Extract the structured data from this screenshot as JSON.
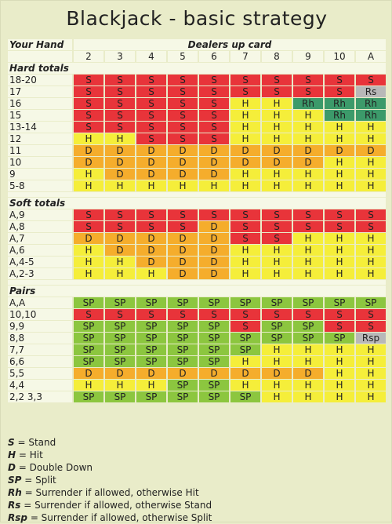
{
  "title": "Blackjack - basic strategy",
  "header": {
    "your_hand": "Your Hand",
    "dealer_label": "Dealers up card",
    "dealer_cards": [
      "2",
      "3",
      "4",
      "5",
      "6",
      "7",
      "8",
      "9",
      "10",
      "A"
    ]
  },
  "sections": [
    {
      "title": "Hard totals",
      "rows": [
        {
          "hand": "18-20",
          "cells": [
            "S",
            "S",
            "S",
            "S",
            "S",
            "S",
            "S",
            "S",
            "S",
            "S"
          ]
        },
        {
          "hand": "17",
          "cells": [
            "S",
            "S",
            "S",
            "S",
            "S",
            "S",
            "S",
            "S",
            "S",
            "Rs"
          ]
        },
        {
          "hand": "16",
          "cells": [
            "S",
            "S",
            "S",
            "S",
            "S",
            "H",
            "H",
            "Rh",
            "Rh",
            "Rh"
          ]
        },
        {
          "hand": "15",
          "cells": [
            "S",
            "S",
            "S",
            "S",
            "S",
            "H",
            "H",
            "H",
            "Rh",
            "Rh"
          ]
        },
        {
          "hand": "13-14",
          "cells": [
            "S",
            "S",
            "S",
            "S",
            "S",
            "H",
            "H",
            "H",
            "H",
            "H"
          ]
        },
        {
          "hand": "12",
          "cells": [
            "H",
            "H",
            "S",
            "S",
            "S",
            "H",
            "H",
            "H",
            "H",
            "H"
          ]
        },
        {
          "hand": "11",
          "cells": [
            "D",
            "D",
            "D",
            "D",
            "D",
            "D",
            "D",
            "D",
            "D",
            "D"
          ]
        },
        {
          "hand": "10",
          "cells": [
            "D",
            "D",
            "D",
            "D",
            "D",
            "D",
            "D",
            "D",
            "H",
            "H"
          ]
        },
        {
          "hand": "9",
          "cells": [
            "H",
            "D",
            "D",
            "D",
            "D",
            "H",
            "H",
            "H",
            "H",
            "H"
          ]
        },
        {
          "hand": "5-8",
          "cells": [
            "H",
            "H",
            "H",
            "H",
            "H",
            "H",
            "H",
            "H",
            "H",
            "H"
          ]
        }
      ]
    },
    {
      "title": "Soft totals",
      "rows": [
        {
          "hand": "A,9",
          "cells": [
            "S",
            "S",
            "S",
            "S",
            "S",
            "S",
            "S",
            "S",
            "S",
            "S"
          ]
        },
        {
          "hand": "A,8",
          "cells": [
            "S",
            "S",
            "S",
            "S",
            "D",
            "S",
            "S",
            "S",
            "S",
            "S"
          ]
        },
        {
          "hand": "A,7",
          "cells": [
            "D",
            "D",
            "D",
            "D",
            "D",
            "S",
            "S",
            "H",
            "H",
            "H"
          ]
        },
        {
          "hand": "A,6",
          "cells": [
            "H",
            "D",
            "D",
            "D",
            "D",
            "H",
            "H",
            "H",
            "H",
            "H"
          ]
        },
        {
          "hand": "A,4-5",
          "cells": [
            "H",
            "H",
            "D",
            "D",
            "D",
            "H",
            "H",
            "H",
            "H",
            "H"
          ]
        },
        {
          "hand": "A,2-3",
          "cells": [
            "H",
            "H",
            "H",
            "D",
            "D",
            "H",
            "H",
            "H",
            "H",
            "H"
          ]
        }
      ]
    },
    {
      "title": "Pairs",
      "rows": [
        {
          "hand": "A,A",
          "cells": [
            "SP",
            "SP",
            "SP",
            "SP",
            "SP",
            "SP",
            "SP",
            "SP",
            "SP",
            "SP"
          ]
        },
        {
          "hand": "10,10",
          "cells": [
            "S",
            "S",
            "S",
            "S",
            "S",
            "S",
            "S",
            "S",
            "S",
            "S"
          ]
        },
        {
          "hand": "9,9",
          "cells": [
            "SP",
            "SP",
            "SP",
            "SP",
            "SP",
            "S",
            "SP",
            "SP",
            "S",
            "S"
          ]
        },
        {
          "hand": "8,8",
          "cells": [
            "SP",
            "SP",
            "SP",
            "SP",
            "SP",
            "SP",
            "SP",
            "SP",
            "SP",
            "Rsp"
          ]
        },
        {
          "hand": "7,7",
          "cells": [
            "SP",
            "SP",
            "SP",
            "SP",
            "SP",
            "SP",
            "H",
            "H",
            "H",
            "H"
          ]
        },
        {
          "hand": "6,6",
          "cells": [
            "SP",
            "SP",
            "SP",
            "SP",
            "SP",
            "H",
            "H",
            "H",
            "H",
            "H"
          ]
        },
        {
          "hand": "5,5",
          "cells": [
            "D",
            "D",
            "D",
            "D",
            "D",
            "D",
            "D",
            "D",
            "H",
            "H"
          ]
        },
        {
          "hand": "4,4",
          "cells": [
            "H",
            "H",
            "H",
            "SP",
            "SP",
            "H",
            "H",
            "H",
            "H",
            "H"
          ]
        },
        {
          "hand": "2,2 3,3",
          "cells": [
            "SP",
            "SP",
            "SP",
            "SP",
            "SP",
            "SP",
            "H",
            "H",
            "H",
            "H"
          ]
        }
      ]
    }
  ],
  "legend": [
    {
      "key": "S",
      "text": "= Stand"
    },
    {
      "key": "H",
      "text": "= Hit"
    },
    {
      "key": "D",
      "text": "= Double Down"
    },
    {
      "key": "SP",
      "text": "= Split"
    },
    {
      "key": "Rh",
      "text": "= Surrender if allowed, otherwise Hit"
    },
    {
      "key": "Rs",
      "text": "= Surrender if allowed, otherwise Stand"
    },
    {
      "key": "Rsp",
      "text": "= Surrender if allowed, otherwise Split"
    }
  ],
  "colors": {
    "S": "#e8343a",
    "H": "#f5ee3a",
    "D": "#f5ad2c",
    "SP": "#8cc63f",
    "Rh": "#3c9a6a",
    "Rs": "#b8b8b8",
    "Rsp": "#b8b8b8"
  }
}
